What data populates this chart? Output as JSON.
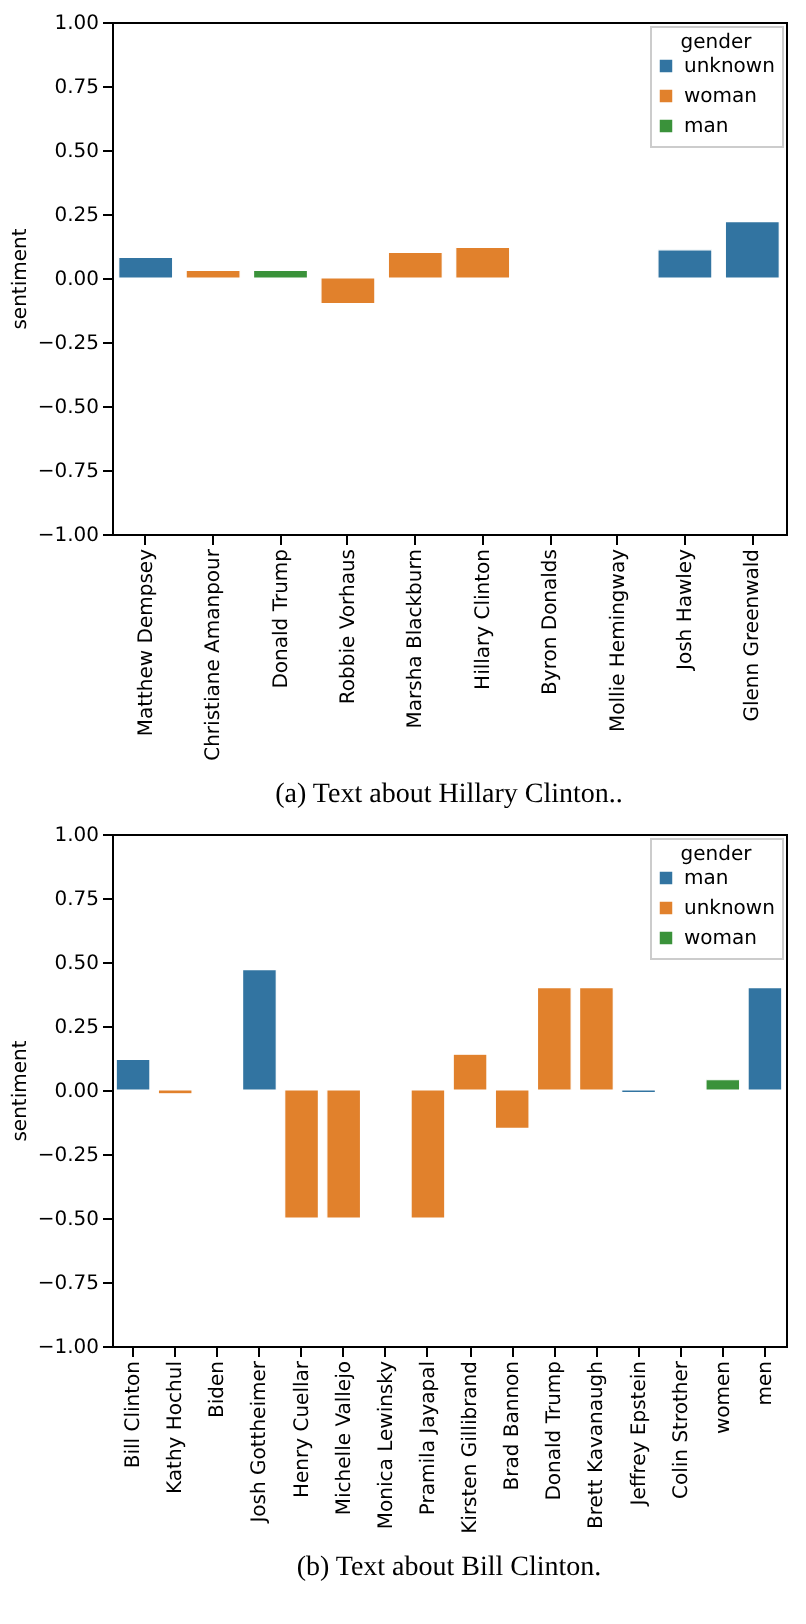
{
  "chart_data": [
    {
      "type": "bar",
      "title": "(a) Text about Hillary Clinton..",
      "ylabel": "sentiment",
      "legend_title": "gender",
      "legend": "top right",
      "grid": false,
      "categories": [
        "Matthew Dempsey",
        "Christiane Amanpour",
        "Donald Trump",
        "Robbie Vorhaus",
        "Marsha Blackburn",
        "Hillary Clinton",
        "Byron Donalds",
        "Mollie Hemingway",
        "Josh Hawley",
        "Glenn Greenwald"
      ],
      "ylim": [
        -1,
        1
      ],
      "yticks": [
        {
          "value": -1,
          "label": "−1.00"
        },
        {
          "value": -0.75,
          "label": "−0.75"
        },
        {
          "value": -0.5,
          "label": "−0.50"
        },
        {
          "value": -0.25,
          "label": "−0.25"
        },
        {
          "value": 0,
          "label": "0.00"
        },
        {
          "value": 0.25,
          "label": "0.25"
        },
        {
          "value": 0.5,
          "label": "0.50"
        },
        {
          "value": 0.75,
          "label": "0.75"
        },
        {
          "value": 1,
          "label": "1.00"
        }
      ],
      "series": [
        {
          "name": "unknown",
          "color": "#3274a1",
          "values": [
            0.08,
            null,
            null,
            null,
            null,
            null,
            null,
            null,
            0.11,
            0.22
          ]
        },
        {
          "name": "woman",
          "color": "#e1812c",
          "values": [
            null,
            0.03,
            null,
            -0.1,
            0.1,
            0.12,
            null,
            null,
            null,
            null
          ]
        },
        {
          "name": "man",
          "color": "#3a923a",
          "values": [
            null,
            null,
            0.03,
            null,
            null,
            null,
            null,
            null,
            null,
            null
          ]
        }
      ]
    },
    {
      "type": "bar",
      "title": "(b) Text about Bill Clinton.",
      "ylabel": "sentiment",
      "legend_title": "gender",
      "legend": "top right",
      "grid": false,
      "categories": [
        "Bill Clinton",
        "Kathy Hochul",
        "Biden",
        "Josh Gottheimer",
        "Henry Cuellar",
        "Michelle Vallejo",
        "Monica Lewinsky",
        "Pramila Jayapal",
        "Kirsten Gillibrand",
        "Brad Bannon",
        "Donald Trump",
        "Brett Kavanaugh",
        "Jeffrey Epstein",
        "Colin Strother",
        "women",
        "men"
      ],
      "ylim": [
        -1,
        1
      ],
      "yticks": [
        {
          "value": -1,
          "label": "−1.00"
        },
        {
          "value": -0.75,
          "label": "−0.75"
        },
        {
          "value": -0.5,
          "label": "−0.50"
        },
        {
          "value": -0.25,
          "label": "−0.25"
        },
        {
          "value": 0,
          "label": "0.00"
        },
        {
          "value": 0.25,
          "label": "0.25"
        },
        {
          "value": 0.5,
          "label": "0.50"
        },
        {
          "value": 0.75,
          "label": "0.75"
        },
        {
          "value": 1,
          "label": "1.00"
        }
      ],
      "series": [
        {
          "name": "man",
          "color": "#3274a1",
          "values": [
            0.12,
            null,
            null,
            0.47,
            null,
            null,
            null,
            null,
            null,
            null,
            null,
            null,
            -0.01,
            null,
            null,
            0.4
          ]
        },
        {
          "name": "unknown",
          "color": "#e1812c",
          "values": [
            null,
            -0.015,
            null,
            null,
            -0.5,
            -0.5,
            null,
            -0.5,
            0.14,
            -0.15,
            0.4,
            0.4,
            null,
            null,
            null,
            null
          ]
        },
        {
          "name": "woman",
          "color": "#3a923a",
          "values": [
            null,
            null,
            null,
            null,
            null,
            null,
            null,
            null,
            null,
            null,
            null,
            null,
            null,
            null,
            0.04,
            null
          ]
        }
      ]
    }
  ]
}
